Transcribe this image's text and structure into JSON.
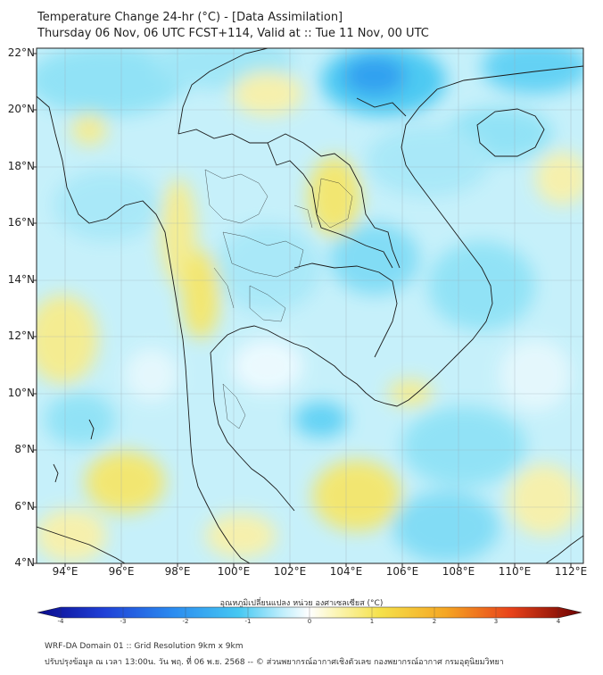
{
  "header": {
    "title": "Temperature Change 24-hr (°C) - [Data Assimilation]",
    "subtitle": "Thursday 06 Nov, 06 UTC FCST+114, Valid at :: Tue 11 Nov, 00 UTC"
  },
  "axes": {
    "lat_labels": [
      "22°N",
      "20°N",
      "18°N",
      "16°N",
      "14°N",
      "12°N",
      "10°N",
      "8°N",
      "6°N",
      "4°N"
    ],
    "lon_labels": [
      "94°E",
      "96°E",
      "98°E",
      "100°E",
      "102°E",
      "104°E",
      "106°E",
      "108°E",
      "110°E",
      "112°E"
    ],
    "lat_range": [
      4,
      22.2
    ],
    "lon_range": [
      93,
      112.5
    ]
  },
  "colorbar": {
    "label": "อุณหภูมิเปลี่ยนแปลง หน่วย องศาเซลเซียส (°C)",
    "ticks": [
      "-4",
      "-3",
      "-2",
      "-1",
      "0",
      "1",
      "2",
      "3",
      "4"
    ],
    "range": [
      -4,
      4
    ],
    "colors": [
      "#0a0a8c",
      "#1f3fd6",
      "#2b8cf0",
      "#46c8f2",
      "#bfeefc",
      "#ffffff",
      "#fbf5b4",
      "#f5e14a",
      "#f5a623",
      "#e8421a",
      "#b0000f",
      "#6a0000"
    ]
  },
  "footer": {
    "line1": "WRF-DA Domain 01 :: Grid Resolution 9km x 9km",
    "line2": "ปรับปรุงข้อมูล ณ เวลา 13:00น. วัน พฤ. ที่ 06 พ.ย. 2568 -- © ส่วนพยากรณ์อากาศเชิงตัวเลข กองพยากรณ์อากาศ กรมอุตุนิยมวิทยา"
  }
}
